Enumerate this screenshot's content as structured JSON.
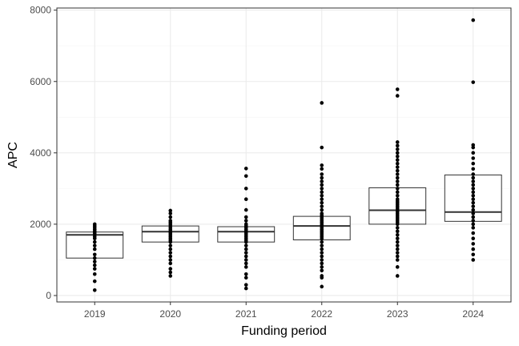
{
  "chart_data": {
    "type": "boxplot",
    "xlabel": "Funding period",
    "ylabel": "APC",
    "categories": [
      "2019",
      "2020",
      "2021",
      "2022",
      "2023",
      "2024"
    ],
    "ylim": [
      -180,
      8060
    ],
    "yticks": [
      0,
      2000,
      4000,
      6000,
      8000
    ],
    "y_tick_labels": [
      "0",
      "2000",
      "4000",
      "6000",
      "8000"
    ],
    "grid": true,
    "legend": "none",
    "colors": {
      "points": "#000000",
      "box_stroke": "#333333",
      "median": "#333333",
      "grid_major": "#ebebeb",
      "grid_minor": "#f4f4f4",
      "panel_border": "#333333"
    },
    "boxes": [
      {
        "category": "2019",
        "q1": 1050,
        "median": 1700,
        "q3": 1780
      },
      {
        "category": "2020",
        "q1": 1500,
        "median": 1790,
        "q3": 1950
      },
      {
        "category": "2021",
        "q1": 1500,
        "median": 1790,
        "q3": 1930
      },
      {
        "category": "2022",
        "q1": 1560,
        "median": 1950,
        "q3": 2220
      },
      {
        "category": "2023",
        "q1": 2000,
        "median": 2390,
        "q3": 3020
      },
      {
        "category": "2024",
        "q1": 2080,
        "median": 2340,
        "q3": 3380
      }
    ],
    "points": [
      {
        "category": "2019",
        "values": [
          150,
          400,
          600,
          750,
          850,
          950,
          1050,
          1150,
          1300,
          1400,
          1500,
          1600,
          1650,
          1700,
          1750,
          1800,
          1850,
          1900,
          1950,
          2000
        ]
      },
      {
        "category": "2020",
        "values": [
          550,
          650,
          750,
          900,
          1000,
          1100,
          1200,
          1300,
          1400,
          1500,
          1550,
          1600,
          1650,
          1700,
          1750,
          1800,
          1850,
          1900,
          1950,
          2000,
          2050,
          2100,
          2200,
          2300,
          2380
        ]
      },
      {
        "category": "2021",
        "values": [
          200,
          300,
          500,
          600,
          800,
          900,
          1000,
          1100,
          1200,
          1300,
          1400,
          1500,
          1550,
          1600,
          1650,
          1700,
          1750,
          1800,
          1850,
          1900,
          1950,
          2000,
          2100,
          2200,
          2400,
          2700,
          3000,
          3350,
          3560
        ]
      },
      {
        "category": "2022",
        "values": [
          250,
          500,
          550,
          700,
          800,
          900,
          1000,
          1100,
          1200,
          1300,
          1400,
          1500,
          1600,
          1650,
          1700,
          1750,
          1800,
          1850,
          1900,
          1950,
          2000,
          2050,
          2100,
          2150,
          2200,
          2250,
          2300,
          2400,
          2500,
          2600,
          2700,
          2800,
          2900,
          3000,
          3100,
          3200,
          3300,
          3400,
          3550,
          3650,
          4150,
          5400
        ]
      },
      {
        "category": "2023",
        "values": [
          550,
          800,
          1000,
          1100,
          1200,
          1300,
          1400,
          1500,
          1600,
          1700,
          1800,
          1900,
          2000,
          2050,
          2100,
          2150,
          2200,
          2250,
          2300,
          2350,
          2400,
          2450,
          2500,
          2550,
          2600,
          2650,
          2700,
          2800,
          2900,
          3000,
          3100,
          3200,
          3300,
          3400,
          3500,
          3600,
          3700,
          3800,
          3900,
          4000,
          4100,
          4200,
          4300,
          5600,
          5780
        ]
      },
      {
        "category": "2024",
        "values": [
          1000,
          1150,
          1300,
          1450,
          1600,
          1750,
          1900,
          2000,
          2100,
          2200,
          2300,
          2400,
          2500,
          2600,
          2700,
          2800,
          2900,
          3000,
          3100,
          3200,
          3300,
          3400,
          3550,
          3700,
          3850,
          4000,
          4150,
          4220,
          5980,
          7720
        ]
      }
    ]
  }
}
